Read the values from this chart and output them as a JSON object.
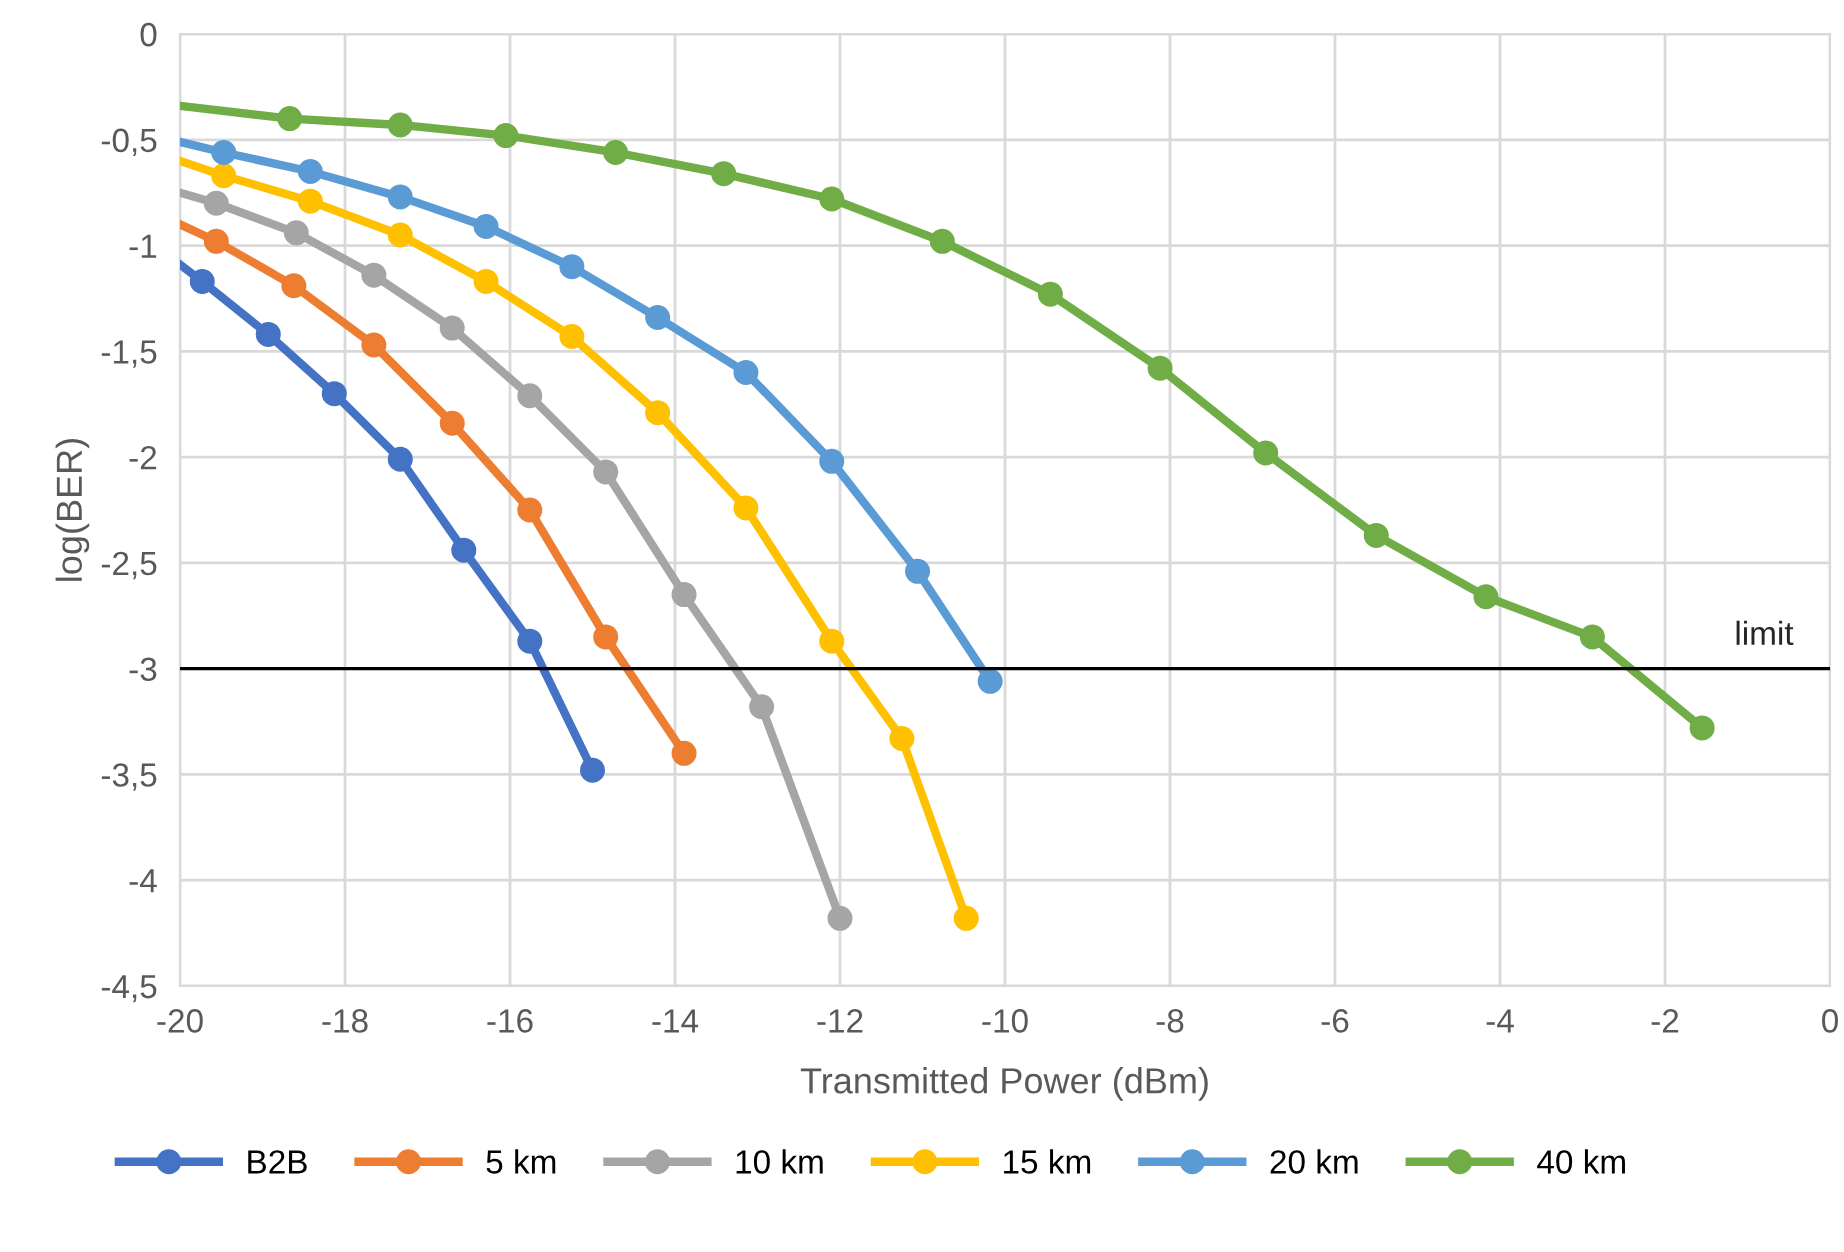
{
  "chart_data": {
    "type": "line",
    "xlabel": "Transmitted Power (dBm)",
    "ylabel": "log(BER)",
    "xlim": [
      -20,
      0
    ],
    "xticks": [
      -20,
      -18,
      -16,
      -14,
      -12,
      -10,
      -8,
      -6,
      -4,
      -2,
      0
    ],
    "ylim": [
      -4.5,
      0
    ],
    "yticks": [
      {
        "value": 0,
        "label": "0"
      },
      {
        "value": -0.5,
        "label": "-0,5"
      },
      {
        "value": -1,
        "label": "-1"
      },
      {
        "value": -1.5,
        "label": "-1,5"
      },
      {
        "value": -2,
        "label": "-2"
      },
      {
        "value": -2.5,
        "label": "-2,5"
      },
      {
        "value": -3,
        "label": "-3"
      },
      {
        "value": -3.5,
        "label": "-3,5"
      },
      {
        "value": -4,
        "label": "-4"
      },
      {
        "value": -4.5,
        "label": "-4,5"
      }
    ],
    "grid": true,
    "legend": "bottom",
    "marker": "circle",
    "line_style": "solid",
    "ref_lines": [
      {
        "axis": "y",
        "value": -3,
        "label": "limit",
        "color": "#000000"
      }
    ],
    "series": [
      {
        "name": "B2B",
        "color": "#4472c4",
        "x": [
          -20,
          -19.73,
          -18.93,
          -18.13,
          -17.33,
          -16.56,
          -15.76,
          -15.0
        ],
        "values": [
          -1.09,
          -1.17,
          -1.42,
          -1.7,
          -2.01,
          -2.44,
          -2.87,
          -3.48
        ]
      },
      {
        "name": "5 km",
        "color": "#ed7d31",
        "x": [
          -20,
          -19.56,
          -18.62,
          -17.65,
          -16.7,
          -15.76,
          -14.84,
          -13.89
        ],
        "values": [
          -0.9,
          -0.98,
          -1.19,
          -1.47,
          -1.84,
          -2.25,
          -2.85,
          -3.4
        ]
      },
      {
        "name": "10 km",
        "color": "#a5a5a5",
        "x": [
          -20,
          -19.56,
          -18.59,
          -17.65,
          -16.7,
          -15.76,
          -14.84,
          -13.89,
          -12.95,
          -12.0
        ],
        "values": [
          -0.75,
          -0.8,
          -0.94,
          -1.14,
          -1.39,
          -1.71,
          -2.07,
          -2.65,
          -3.18,
          -4.18
        ]
      },
      {
        "name": "15 km",
        "color": "#ffc000",
        "x": [
          -20,
          -19.47,
          -18.42,
          -17.33,
          -16.29,
          -15.25,
          -14.21,
          -13.14,
          -12.1,
          -11.25,
          -10.47
        ],
        "values": [
          -0.6,
          -0.67,
          -0.79,
          -0.95,
          -1.17,
          -1.43,
          -1.79,
          -2.24,
          -2.87,
          -3.33,
          -4.18
        ]
      },
      {
        "name": "20 km",
        "color": "#5b9bd5",
        "x": [
          -20,
          -19.47,
          -18.42,
          -17.33,
          -16.29,
          -15.25,
          -14.21,
          -13.14,
          -12.1,
          -11.06,
          -10.18
        ],
        "values": [
          -0.51,
          -0.56,
          -0.65,
          -0.77,
          -0.91,
          -1.1,
          -1.34,
          -1.6,
          -2.02,
          -2.54,
          -3.06
        ]
      },
      {
        "name": "40 km",
        "color": "#70ad47",
        "x": [
          -20,
          -18.67,
          -17.33,
          -16.05,
          -14.72,
          -13.41,
          -12.1,
          -10.76,
          -9.45,
          -8.12,
          -6.84,
          -5.5,
          -4.17,
          -2.88,
          -1.55
        ],
        "values": [
          -0.34,
          -0.4,
          -0.43,
          -0.48,
          -0.56,
          -0.66,
          -0.78,
          -0.98,
          -1.23,
          -1.58,
          -1.98,
          -2.37,
          -2.66,
          -2.85,
          -3.28
        ]
      }
    ]
  }
}
